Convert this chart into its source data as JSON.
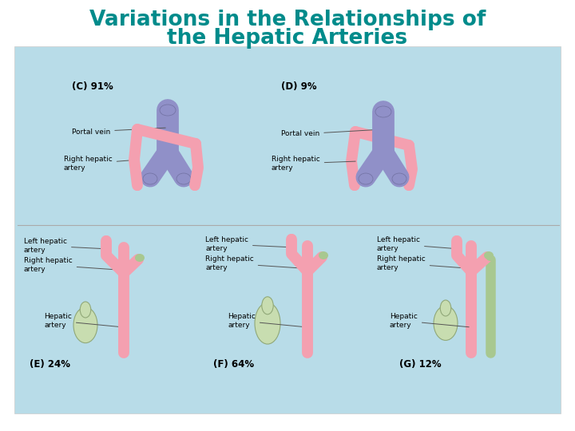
{
  "title_line1": "Variations in the Relationships of",
  "title_line2": "the Hepatic Arteries",
  "title_color": "#008B8B",
  "title_fontsize": 19,
  "background_color": "#ffffff",
  "panel_bg_color": "#b8dce8",
  "labels": {
    "C": "(C) 91%",
    "D": "(D) 9%",
    "E": "(E) 24%",
    "F": "(F) 64%",
    "G": "(G) 12%"
  },
  "pink": "#F4A0B0",
  "purple": "#9090C8",
  "green_gb": "#c8ddb0",
  "green_art": "#a8c890",
  "annotation_fontsize": 6.5,
  "percent_fontsize": 8.5
}
